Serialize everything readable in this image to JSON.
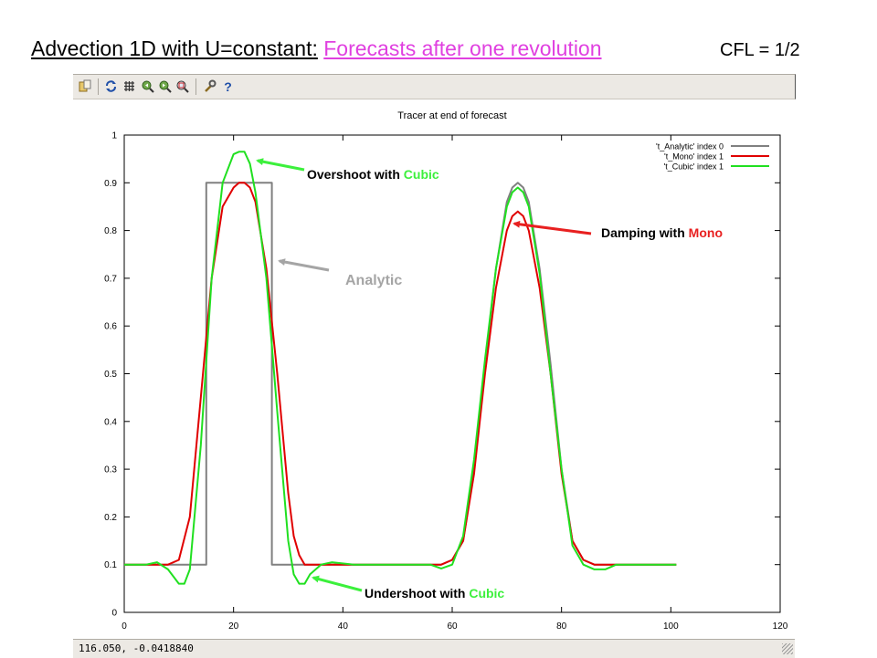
{
  "title": {
    "main": "Advection 1D with U=constant:",
    "highlight": "Forecasts after one revolution",
    "cfl": "CFL = 1/2"
  },
  "toolbar": {
    "icons": [
      "copy-to-clipboard-icon",
      "replot-icon",
      "grid-icon",
      "zoom-previous-icon",
      "zoom-next-icon",
      "unzoom-icon",
      "settings-icon",
      "help-icon"
    ]
  },
  "statusbar": {
    "coords": "116.050, -0.0418840"
  },
  "annotations": {
    "overshoot_prefix": "Overshoot with ",
    "overshoot_word": "Cubic",
    "undershoot_prefix": "Undershoot with ",
    "undershoot_word": "Cubic",
    "damping_prefix": "Damping with ",
    "damping_word": "Mono",
    "analytic": "Analytic"
  },
  "colors": {
    "title_highlight": "#e040e0",
    "analytic": "#808080",
    "mono": "#e00000",
    "cubic": "#20e020",
    "green_word": "#3cf03c",
    "red_word": "#e82020",
    "analytic_label": "#a5a5a5"
  },
  "chart_data": {
    "type": "line",
    "title": "Tracer at end of forecast",
    "xlim": [
      0,
      120
    ],
    "ylim": [
      0,
      1
    ],
    "xticks": [
      0,
      20,
      40,
      60,
      80,
      100,
      120
    ],
    "yticks": [
      0,
      0.1,
      0.2,
      0.3,
      0.4,
      0.5,
      0.6,
      0.7,
      0.8,
      0.9,
      1
    ],
    "grid": false,
    "legend": "top-right",
    "series": [
      {
        "name": "'t_Analytic' index 0",
        "color": "#808080",
        "x": [
          0,
          15,
          15.01,
          27,
          27.01,
          58,
          60,
          62,
          64,
          66,
          68,
          70,
          71,
          72,
          73,
          74,
          76,
          78,
          80,
          82,
          84,
          86,
          101
        ],
        "y": [
          0.1,
          0.1,
          0.9,
          0.9,
          0.1,
          0.1,
          0.11,
          0.15,
          0.3,
          0.52,
          0.72,
          0.86,
          0.89,
          0.9,
          0.89,
          0.86,
          0.72,
          0.52,
          0.3,
          0.15,
          0.11,
          0.1,
          0.1
        ]
      },
      {
        "name": "'t_Mono' index 1",
        "color": "#e00000",
        "x": [
          0,
          4,
          8,
          10,
          12,
          14,
          16,
          18,
          20,
          21,
          22,
          23,
          24,
          26,
          28,
          30,
          31,
          32,
          33,
          34,
          36,
          40,
          58,
          60,
          62,
          64,
          66,
          68,
          70,
          71,
          72,
          73,
          74,
          76,
          78,
          80,
          82,
          84,
          86,
          101
        ],
        "y": [
          0.1,
          0.1,
          0.1,
          0.11,
          0.2,
          0.45,
          0.7,
          0.85,
          0.89,
          0.9,
          0.9,
          0.89,
          0.86,
          0.72,
          0.5,
          0.25,
          0.16,
          0.12,
          0.1,
          0.1,
          0.1,
          0.1,
          0.1,
          0.11,
          0.15,
          0.29,
          0.5,
          0.68,
          0.8,
          0.83,
          0.84,
          0.83,
          0.8,
          0.68,
          0.5,
          0.29,
          0.15,
          0.11,
          0.1,
          0.1
        ]
      },
      {
        "name": "'t_Cubic' index 1",
        "color": "#20e020",
        "x": [
          0,
          4,
          6,
          8,
          10,
          11,
          12,
          14,
          16,
          18,
          20,
          21,
          22,
          23,
          24,
          26,
          28,
          30,
          31,
          32,
          33,
          34,
          36,
          38,
          42,
          56,
          58,
          60,
          62,
          64,
          66,
          68,
          70,
          71,
          72,
          73,
          74,
          76,
          78,
          80,
          82,
          84,
          86,
          88,
          90,
          92,
          101
        ],
        "y": [
          0.1,
          0.1,
          0.105,
          0.09,
          0.06,
          0.06,
          0.09,
          0.35,
          0.7,
          0.9,
          0.96,
          0.965,
          0.965,
          0.94,
          0.88,
          0.7,
          0.42,
          0.15,
          0.08,
          0.06,
          0.06,
          0.08,
          0.1,
          0.105,
          0.1,
          0.1,
          0.092,
          0.1,
          0.16,
          0.32,
          0.53,
          0.72,
          0.85,
          0.88,
          0.89,
          0.88,
          0.85,
          0.71,
          0.5,
          0.3,
          0.14,
          0.1,
          0.09,
          0.09,
          0.1,
          0.1,
          0.1
        ]
      }
    ]
  }
}
